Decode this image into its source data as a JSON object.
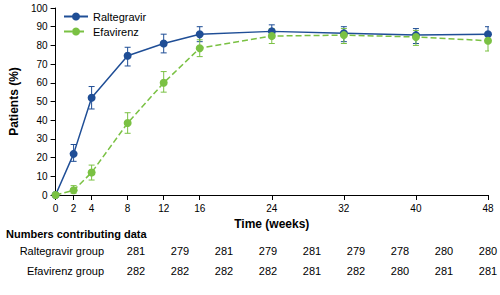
{
  "chart_data": {
    "type": "line",
    "x_label": "Time (weeks)",
    "y_label": "Patients (%)",
    "x": [
      0,
      2,
      4,
      8,
      12,
      16,
      24,
      32,
      40,
      48
    ],
    "xlim": [
      0,
      48
    ],
    "xticks": [
      0,
      2,
      4,
      8,
      12,
      16,
      24,
      32,
      40,
      48
    ],
    "ylim": [
      0,
      100
    ],
    "yticks": [
      0,
      10,
      20,
      30,
      40,
      50,
      60,
      70,
      80,
      90,
      100
    ],
    "grid": false,
    "legend": "upper left",
    "series": [
      {
        "name": "Raltegravir",
        "color": "#1f4e96",
        "line_style": "solid",
        "marker": "circle",
        "values": [
          0,
          22,
          52,
          74.5,
          81,
          86,
          87.5,
          86.5,
          85.5,
          86
        ],
        "error_low": [
          null,
          18,
          46,
          69,
          76,
          82,
          84,
          82,
          81,
          82
        ],
        "error_high": [
          null,
          27,
          58,
          79,
          86,
          90,
          91,
          90,
          89,
          90
        ]
      },
      {
        "name": "Efavirenz",
        "color": "#7ac143",
        "line_style": "dashed",
        "marker": "circle",
        "values": [
          0,
          2.5,
          12,
          38.5,
          60,
          78.5,
          85,
          85.5,
          84.5,
          82.5
        ],
        "error_low": [
          null,
          1,
          8,
          33,
          55,
          74,
          81,
          81,
          80,
          77
        ],
        "error_high": [
          null,
          5,
          16,
          44,
          66,
          83,
          89,
          89,
          88,
          87
        ]
      }
    ],
    "table": {
      "title": "Numbers contributing data",
      "rows": [
        {
          "name": "Raltegravir group",
          "values": [
            281,
            279,
            281,
            279,
            281,
            279,
            278,
            280,
            280
          ]
        },
        {
          "name": "Efavirenz group",
          "values": [
            282,
            282,
            282,
            282,
            281,
            282,
            280,
            281,
            281
          ]
        }
      ]
    }
  }
}
